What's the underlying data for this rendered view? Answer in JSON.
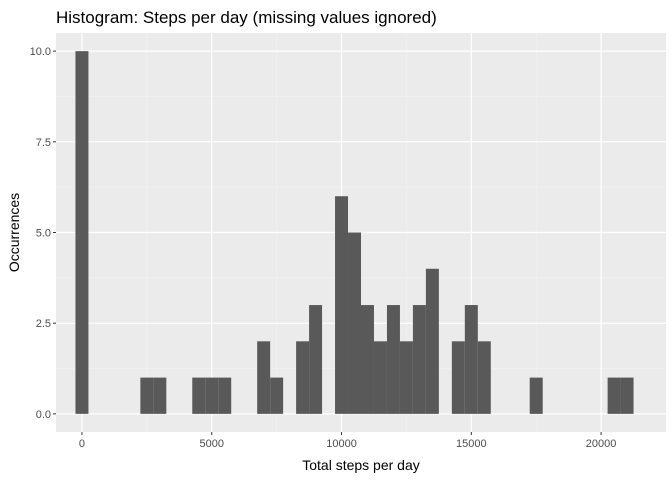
{
  "chart_data": {
    "type": "bar",
    "title": "Histogram: Steps per day (missing values ignored)",
    "xlabel": "Total steps per day",
    "ylabel": "Occurrences",
    "xlim": [
      -1000,
      22500
    ],
    "ylim": [
      -0.5,
      10.5
    ],
    "bin_width": 500,
    "x_ticks": [
      0,
      5000,
      10000,
      15000,
      20000
    ],
    "x_tick_labels": [
      "0",
      "5000",
      "10000",
      "15000",
      "20000"
    ],
    "y_ticks": [
      0,
      2.5,
      5,
      7.5,
      10
    ],
    "y_tick_labels": [
      "0.0",
      "2.5",
      "5.0",
      "7.5",
      "10.0"
    ],
    "grid": true,
    "legend": "none",
    "bins": [
      {
        "x": 0,
        "count": 10
      },
      {
        "x": 2500,
        "count": 1
      },
      {
        "x": 3000,
        "count": 1
      },
      {
        "x": 4500,
        "count": 1
      },
      {
        "x": 5000,
        "count": 1
      },
      {
        "x": 5500,
        "count": 1
      },
      {
        "x": 7000,
        "count": 2
      },
      {
        "x": 7500,
        "count": 1
      },
      {
        "x": 8500,
        "count": 2
      },
      {
        "x": 9000,
        "count": 3
      },
      {
        "x": 10000,
        "count": 6
      },
      {
        "x": 10500,
        "count": 5
      },
      {
        "x": 11000,
        "count": 3
      },
      {
        "x": 11500,
        "count": 2
      },
      {
        "x": 12000,
        "count": 3
      },
      {
        "x": 12500,
        "count": 2
      },
      {
        "x": 13000,
        "count": 3
      },
      {
        "x": 13500,
        "count": 4
      },
      {
        "x": 14500,
        "count": 2
      },
      {
        "x": 15000,
        "count": 3
      },
      {
        "x": 15500,
        "count": 2
      },
      {
        "x": 17500,
        "count": 1
      },
      {
        "x": 20500,
        "count": 1
      },
      {
        "x": 21000,
        "count": 1
      }
    ],
    "colors": {
      "bar": "#595959",
      "panel": "#ebebeb",
      "grid_major": "#ffffff",
      "grid_minor": "#f2f2f2"
    }
  }
}
